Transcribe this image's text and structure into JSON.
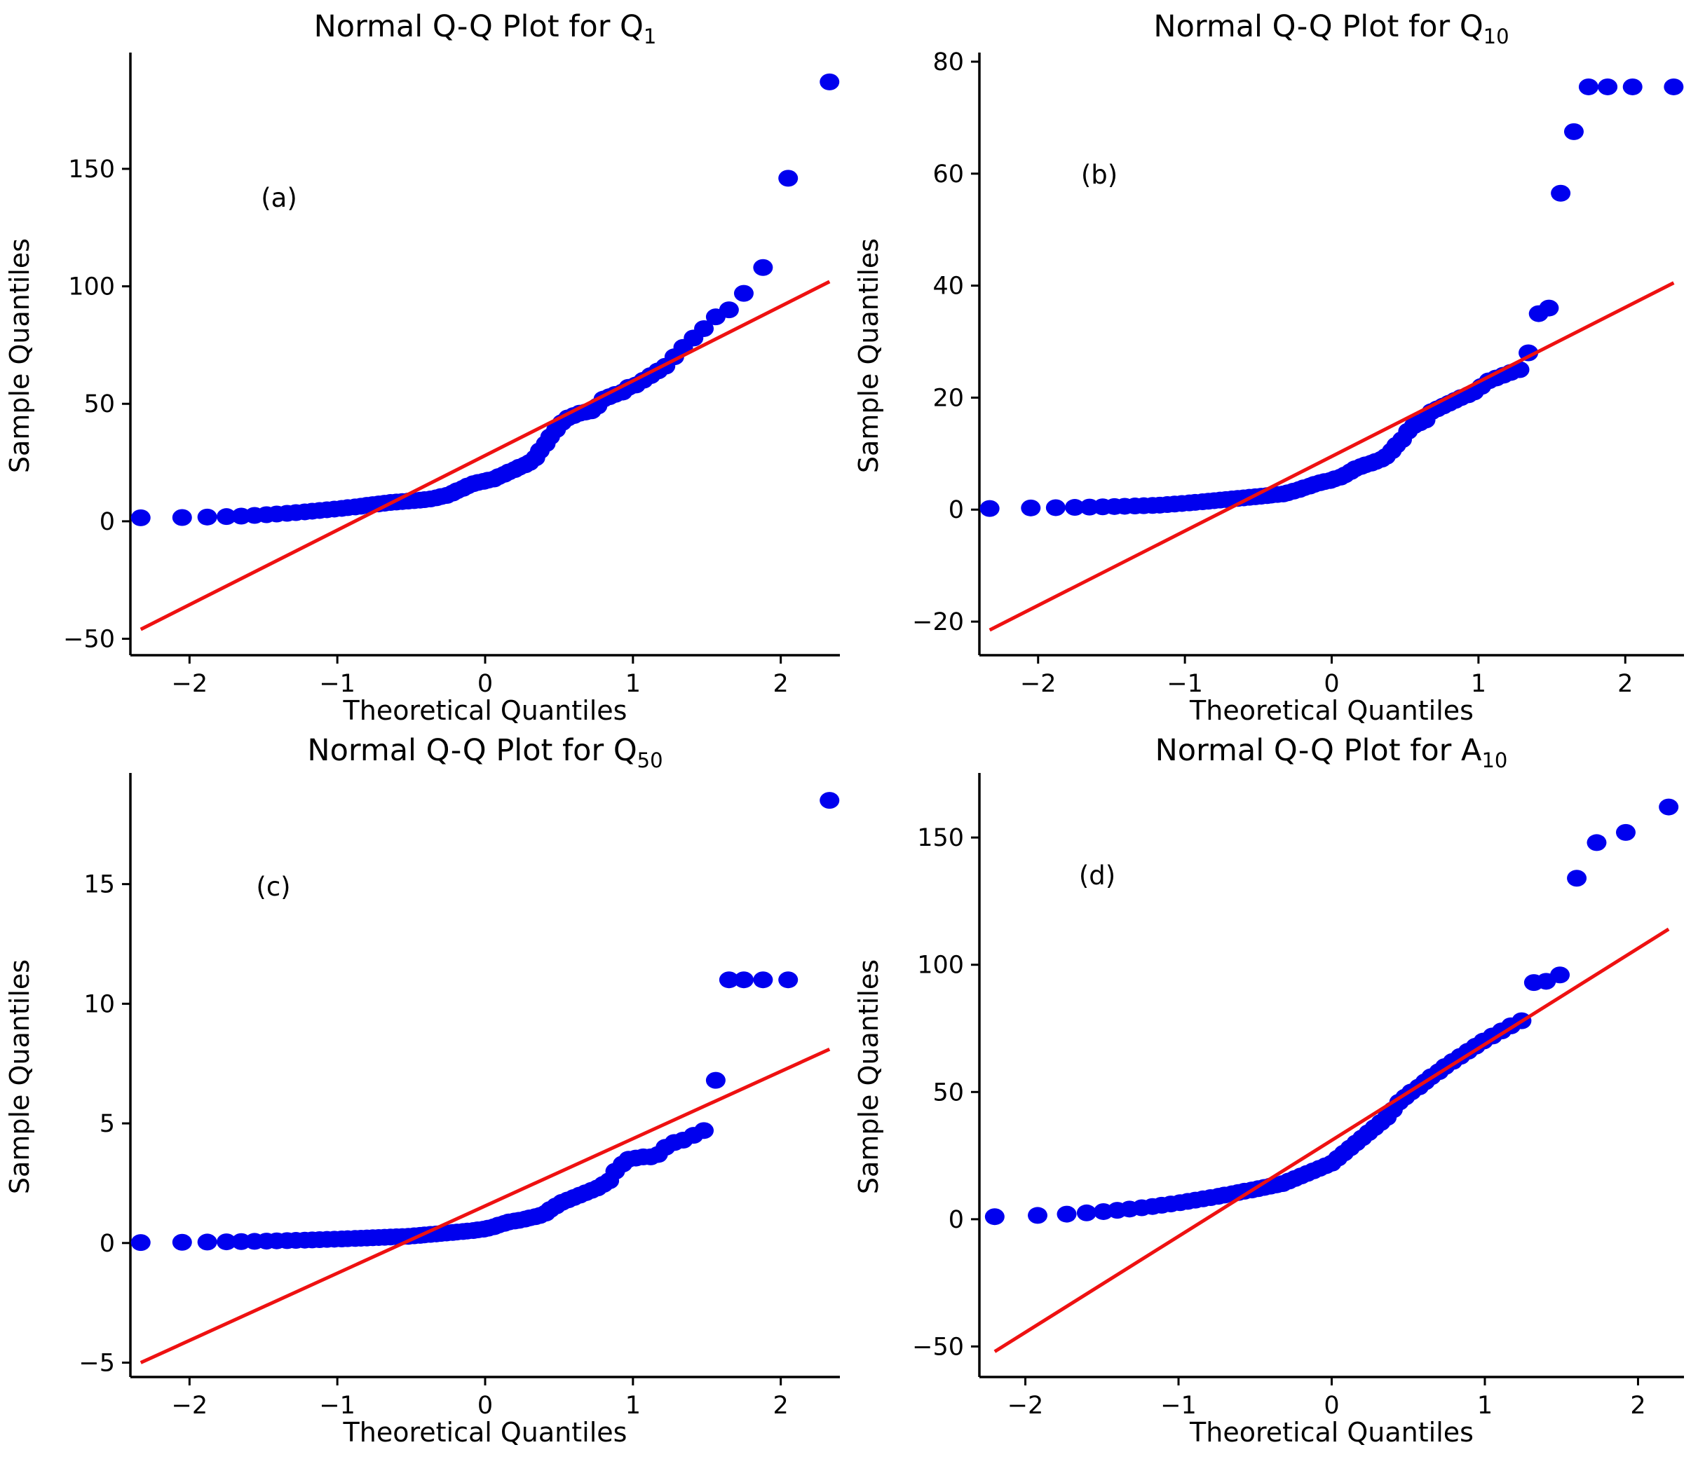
{
  "figure": {
    "marker_color": "#0000ee",
    "line_color": "#ee1111"
  },
  "chart_data": [
    {
      "type": "scatter",
      "panel_tag": "(a)",
      "title": {
        "prefix": "Normal Q-Q Plot for Q",
        "sub": "1"
      },
      "xlabel": "Theoretical Quantiles",
      "ylabel": "Sample Quantiles",
      "xlim": [
        -2.4,
        2.4
      ],
      "ylim": [
        -57,
        198
      ],
      "xticks": [
        -2,
        -1,
        0,
        1,
        2
      ],
      "yticks": [
        -50,
        0,
        50,
        100,
        150
      ],
      "fit_line": {
        "x": [
          -2.33,
          2.33
        ],
        "y": [
          -46,
          102
        ]
      },
      "series": [
        {
          "name": "Q1 sample quantiles",
          "x": [
            -2.33,
            -2.05,
            -1.88,
            -1.75,
            -1.65,
            -1.56,
            -1.48,
            -1.41,
            -1.34,
            -1.28,
            -1.22,
            -1.17,
            -1.12,
            -1.07,
            -1.02,
            -0.97,
            -0.93,
            -0.88,
            -0.84,
            -0.8,
            -0.76,
            -0.72,
            -0.68,
            -0.64,
            -0.6,
            -0.56,
            -0.52,
            -0.48,
            -0.44,
            -0.41,
            -0.37,
            -0.33,
            -0.3,
            -0.26,
            -0.22,
            -0.19,
            -0.15,
            -0.12,
            -0.08,
            -0.05,
            -0.01,
            0.02,
            0.06,
            0.09,
            0.13,
            0.16,
            0.2,
            0.23,
            0.27,
            0.3,
            0.34,
            0.37,
            0.41,
            0.44,
            0.48,
            0.52,
            0.56,
            0.6,
            0.64,
            0.68,
            0.72,
            0.76,
            0.8,
            0.84,
            0.88,
            0.93,
            0.97,
            1.02,
            1.07,
            1.12,
            1.17,
            1.22,
            1.28,
            1.34,
            1.41,
            1.48,
            1.56,
            1.65,
            1.75,
            1.88,
            2.05,
            2.33
          ],
          "y": [
            1.5,
            1.6,
            1.8,
            2.0,
            2.2,
            2.5,
            2.8,
            3.1,
            3.4,
            3.7,
            4.0,
            4.3,
            4.6,
            4.9,
            5.2,
            5.5,
            5.8,
            6.1,
            6.4,
            6.8,
            7.1,
            7.4,
            7.7,
            8.0,
            8.2,
            8.4,
            8.6,
            8.8,
            9.0,
            9.2,
            9.5,
            10.0,
            10.5,
            11.0,
            12.0,
            13.0,
            14.0,
            15.0,
            16.0,
            16.5,
            17.0,
            17.5,
            18.0,
            19.0,
            20.0,
            21.0,
            22.0,
            23.0,
            24.0,
            25.0,
            27.0,
            30.0,
            33.0,
            36.0,
            39.0,
            42.0,
            44.0,
            45.0,
            46.0,
            46.5,
            47.0,
            49.0,
            52.0,
            53.0,
            54.0,
            55.0,
            57.0,
            58.0,
            60.0,
            62.0,
            64.0,
            66.0,
            70.0,
            74.0,
            78.0,
            82.0,
            87.0,
            90.0,
            97.0,
            108.0,
            146.0,
            187.0
          ]
        }
      ]
    },
    {
      "type": "scatter",
      "panel_tag": "(b)",
      "title": {
        "prefix": "Normal Q-Q Plot for Q",
        "sub": "10"
      },
      "xlabel": "Theoretical Quantiles",
      "ylabel": "Sample Quantiles",
      "xlim": [
        -2.4,
        2.4
      ],
      "ylim": [
        -26,
        81
      ],
      "xticks": [
        -2,
        -1,
        0,
        1,
        2
      ],
      "yticks": [
        -20,
        0,
        20,
        40,
        60,
        80
      ],
      "fit_line": {
        "x": [
          -2.33,
          2.33
        ],
        "y": [
          -21.5,
          40.5
        ]
      },
      "series": [
        {
          "name": "Q10 sample quantiles",
          "x": [
            -2.33,
            -2.05,
            -1.88,
            -1.75,
            -1.65,
            -1.56,
            -1.48,
            -1.41,
            -1.34,
            -1.28,
            -1.22,
            -1.17,
            -1.12,
            -1.07,
            -1.02,
            -0.97,
            -0.93,
            -0.88,
            -0.84,
            -0.8,
            -0.76,
            -0.72,
            -0.68,
            -0.64,
            -0.6,
            -0.56,
            -0.52,
            -0.48,
            -0.44,
            -0.41,
            -0.37,
            -0.33,
            -0.3,
            -0.26,
            -0.22,
            -0.19,
            -0.15,
            -0.12,
            -0.08,
            -0.05,
            -0.01,
            0.02,
            0.06,
            0.09,
            0.13,
            0.16,
            0.2,
            0.23,
            0.27,
            0.3,
            0.34,
            0.37,
            0.41,
            0.44,
            0.48,
            0.52,
            0.56,
            0.6,
            0.64,
            0.68,
            0.72,
            0.76,
            0.8,
            0.84,
            0.88,
            0.93,
            0.97,
            1.02,
            1.07,
            1.12,
            1.17,
            1.22,
            1.28,
            1.34,
            1.41,
            1.48,
            1.56,
            1.65,
            1.75,
            1.88,
            2.05,
            2.33
          ],
          "y": [
            0.2,
            0.3,
            0.35,
            0.4,
            0.45,
            0.5,
            0.55,
            0.6,
            0.65,
            0.7,
            0.75,
            0.8,
            0.9,
            1.0,
            1.1,
            1.2,
            1.3,
            1.4,
            1.5,
            1.6,
            1.7,
            1.8,
            1.9,
            2.0,
            2.1,
            2.2,
            2.3,
            2.4,
            2.5,
            2.6,
            2.7,
            2.8,
            3.0,
            3.3,
            3.6,
            3.9,
            4.2,
            4.5,
            4.8,
            5.0,
            5.2,
            5.5,
            5.8,
            6.2,
            6.8,
            7.3,
            7.7,
            8.0,
            8.3,
            8.6,
            9.0,
            9.5,
            10.5,
            11.5,
            12.5,
            14.0,
            15.0,
            15.5,
            16.0,
            17.5,
            18.0,
            18.5,
            19.0,
            19.5,
            20.0,
            20.5,
            21.0,
            22.0,
            23.0,
            23.5,
            24.0,
            24.5,
            25.0,
            28.0,
            35.0,
            36.0,
            56.5,
            67.5,
            75.5,
            75.5,
            75.5,
            75.5
          ]
        }
      ]
    },
    {
      "type": "scatter",
      "panel_tag": "(c)",
      "title": {
        "prefix": "Normal Q-Q Plot for Q",
        "sub": "50"
      },
      "xlabel": "Theoretical Quantiles",
      "ylabel": "Sample Quantiles",
      "xlim": [
        -2.4,
        2.4
      ],
      "ylim": [
        -5.6,
        19.5
      ],
      "xticks": [
        -2,
        -1,
        0,
        1,
        2
      ],
      "yticks": [
        -5,
        0,
        5,
        10,
        15
      ],
      "fit_line": {
        "x": [
          -2.33,
          2.33
        ],
        "y": [
          -5.0,
          8.1
        ]
      },
      "series": [
        {
          "name": "Q50 sample quantiles",
          "x": [
            -2.33,
            -2.05,
            -1.88,
            -1.75,
            -1.65,
            -1.56,
            -1.48,
            -1.41,
            -1.34,
            -1.28,
            -1.22,
            -1.17,
            -1.12,
            -1.07,
            -1.02,
            -0.97,
            -0.93,
            -0.88,
            -0.84,
            -0.8,
            -0.76,
            -0.72,
            -0.68,
            -0.64,
            -0.6,
            -0.56,
            -0.52,
            -0.48,
            -0.44,
            -0.41,
            -0.37,
            -0.33,
            -0.3,
            -0.26,
            -0.22,
            -0.19,
            -0.15,
            -0.12,
            -0.08,
            -0.05,
            -0.01,
            0.02,
            0.06,
            0.09,
            0.13,
            0.16,
            0.2,
            0.23,
            0.27,
            0.3,
            0.34,
            0.37,
            0.41,
            0.44,
            0.48,
            0.52,
            0.56,
            0.6,
            0.64,
            0.68,
            0.72,
            0.76,
            0.8,
            0.84,
            0.88,
            0.93,
            0.97,
            1.02,
            1.07,
            1.12,
            1.17,
            1.22,
            1.28,
            1.34,
            1.41,
            1.48,
            1.56,
            1.65,
            1.75,
            1.88,
            2.05,
            2.33
          ],
          "y": [
            0.02,
            0.03,
            0.04,
            0.05,
            0.06,
            0.07,
            0.08,
            0.09,
            0.1,
            0.11,
            0.12,
            0.13,
            0.14,
            0.15,
            0.16,
            0.17,
            0.18,
            0.19,
            0.2,
            0.21,
            0.22,
            0.23,
            0.24,
            0.25,
            0.26,
            0.27,
            0.28,
            0.3,
            0.32,
            0.34,
            0.36,
            0.38,
            0.4,
            0.42,
            0.44,
            0.46,
            0.48,
            0.5,
            0.52,
            0.55,
            0.58,
            0.62,
            0.68,
            0.75,
            0.82,
            0.88,
            0.92,
            0.95,
            1.0,
            1.05,
            1.1,
            1.15,
            1.25,
            1.4,
            1.55,
            1.7,
            1.8,
            1.9,
            2.0,
            2.1,
            2.2,
            2.3,
            2.45,
            2.6,
            3.0,
            3.3,
            3.5,
            3.55,
            3.6,
            3.6,
            3.7,
            4.0,
            4.2,
            4.3,
            4.5,
            4.7,
            6.8,
            11.0,
            11.0,
            11.0,
            11.0,
            18.5
          ]
        }
      ]
    },
    {
      "type": "scatter",
      "panel_tag": "(d)",
      "title": {
        "prefix": "Normal Q-Q Plot for A",
        "sub": "10"
      },
      "xlabel": "Theoretical Quantiles",
      "ylabel": "Sample Quantiles",
      "xlim": [
        -2.3,
        2.3
      ],
      "ylim": [
        -62,
        174
      ],
      "xticks": [
        -2,
        -1,
        0,
        1,
        2
      ],
      "yticks": [
        -50,
        0,
        50,
        100,
        150
      ],
      "fit_line": {
        "x": [
          -2.2,
          2.2
        ],
        "y": [
          -52,
          114
        ]
      },
      "series": [
        {
          "name": "A10 sample quantiles",
          "x": [
            -2.2,
            -1.92,
            -1.73,
            -1.6,
            -1.49,
            -1.4,
            -1.32,
            -1.24,
            -1.17,
            -1.11,
            -1.05,
            -0.99,
            -0.94,
            -0.89,
            -0.84,
            -0.79,
            -0.74,
            -0.7,
            -0.65,
            -0.61,
            -0.57,
            -0.52,
            -0.48,
            -0.44,
            -0.4,
            -0.36,
            -0.32,
            -0.28,
            -0.24,
            -0.2,
            -0.16,
            -0.12,
            -0.08,
            -0.04,
            0.0,
            0.04,
            0.08,
            0.12,
            0.16,
            0.2,
            0.24,
            0.28,
            0.32,
            0.36,
            0.4,
            0.44,
            0.48,
            0.52,
            0.57,
            0.61,
            0.65,
            0.7,
            0.74,
            0.79,
            0.84,
            0.89,
            0.94,
            0.99,
            1.05,
            1.11,
            1.17,
            1.24,
            1.32,
            1.4,
            1.49,
            1.6,
            1.73,
            1.92,
            2.2
          ],
          "y": [
            1.0,
            1.5,
            2.0,
            2.5,
            3.0,
            3.5,
            4.0,
            4.5,
            5.0,
            5.5,
            6.0,
            6.5,
            7.0,
            7.5,
            8.0,
            8.5,
            9.0,
            9.5,
            10.0,
            10.5,
            11.0,
            11.5,
            12.0,
            12.5,
            13.0,
            13.5,
            14.0,
            15.0,
            16.0,
            17.0,
            18.0,
            19.0,
            20.0,
            21.0,
            22.0,
            24.0,
            26.0,
            28.0,
            30.0,
            32.0,
            34.0,
            36.0,
            38.0,
            40.0,
            43.0,
            46.0,
            48.0,
            50.0,
            52.0,
            54.0,
            56.0,
            58.0,
            60.0,
            62.0,
            64.0,
            66.0,
            68.0,
            70.0,
            72.0,
            74.0,
            76.0,
            78.0,
            93.0,
            93.5,
            96.0,
            134.0,
            148.0,
            152.0,
            162.0
          ]
        }
      ]
    }
  ]
}
